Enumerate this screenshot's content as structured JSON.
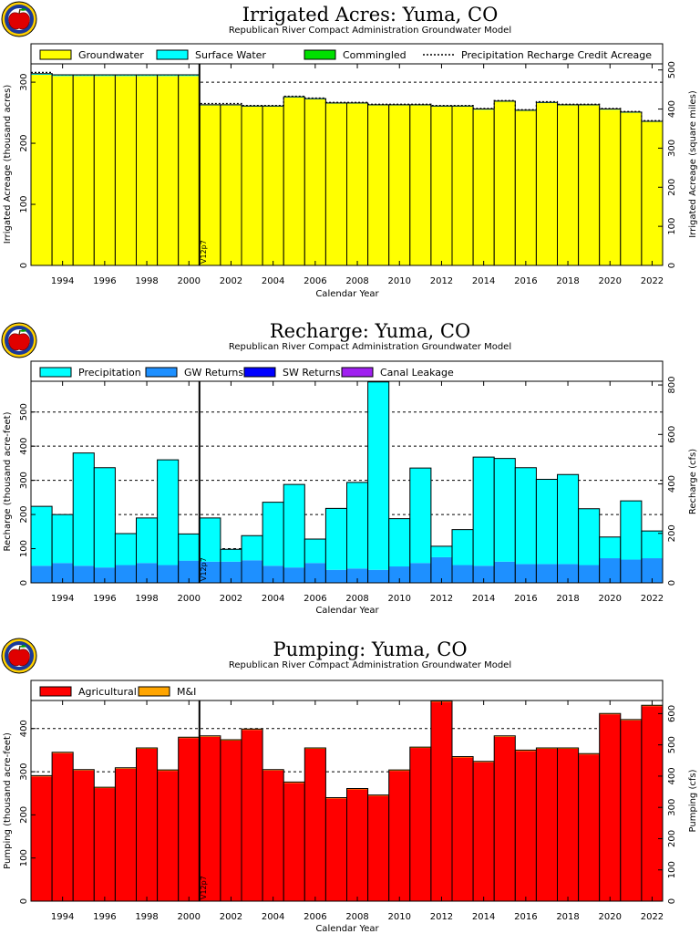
{
  "chart_data": [
    {
      "type": "bar",
      "title": "Irrigated Acres: Yuma, CO",
      "subtitle": "Republican River Compact Administration Groundwater Model",
      "xlabel": "Calendar Year",
      "ylabel": "Irrigated Acreage (thousand acres)",
      "ylabel_right": "Irrigated Acreage (square miles)",
      "stacked": true,
      "x": [
        1993,
        1994,
        1995,
        1996,
        1997,
        1998,
        1999,
        2000,
        2001,
        2002,
        2003,
        2004,
        2005,
        2006,
        2007,
        2008,
        2009,
        2010,
        2011,
        2012,
        2013,
        2014,
        2015,
        2016,
        2017,
        2018,
        2019,
        2020,
        2021,
        2022
      ],
      "x_ticks": [
        "1994",
        "1996",
        "1998",
        "2000",
        "2002",
        "2004",
        "2006",
        "2008",
        "2010",
        "2012",
        "2014",
        "2016",
        "2018",
        "2020",
        "2022"
      ],
      "ylim": [
        0,
        330
      ],
      "y_ticks": [
        "0",
        "100",
        "200",
        "300"
      ],
      "ylim_right": [
        0,
        515.6
      ],
      "y_ticks_right": [
        "0",
        "100",
        "200",
        "300",
        "400",
        "500"
      ],
      "colors": {
        "Groundwater": "#ffff00",
        "Surface Water": "#00ffff",
        "Commingled": "#00e000",
        "Precipitation Recharge Credit Acreage": "#000000"
      },
      "legend": [
        "Groundwater",
        "Surface Water",
        "Commingled",
        "Precipitation Recharge Credit Acreage"
      ],
      "legend_position": "top",
      "series": [
        {
          "name": "Groundwater",
          "values": [
            312,
            310,
            310,
            310,
            310,
            310,
            310,
            310,
            262,
            262,
            260,
            260,
            275,
            272,
            265,
            265,
            262,
            262,
            262,
            260,
            260,
            255,
            268,
            253,
            266,
            262,
            262,
            255,
            250,
            235
          ]
        },
        {
          "name": "Surface Water",
          "values": [
            2,
            2,
            2,
            2,
            2,
            2,
            2,
            2,
            1,
            1,
            1,
            1,
            1,
            1,
            1,
            1,
            1,
            1,
            1,
            1,
            1,
            1,
            1,
            1,
            1,
            1,
            1,
            1,
            1,
            1
          ]
        },
        {
          "name": "Commingled",
          "values": [
            0,
            0,
            0,
            0,
            0,
            0,
            0,
            0,
            0,
            0,
            0,
            0,
            0,
            0,
            0,
            0,
            0,
            0,
            0,
            0,
            0,
            0,
            0,
            0,
            0,
            0,
            0,
            0,
            0,
            0
          ]
        },
        {
          "name": "Precipitation Recharge Credit Acreage",
          "line": true,
          "values": [
            316,
            312,
            312,
            312,
            312,
            312,
            312,
            312,
            265,
            265,
            262,
            262,
            277,
            274,
            267,
            267,
            264,
            264,
            264,
            262,
            262,
            257,
            270,
            255,
            268,
            264,
            264,
            257,
            252,
            237
          ]
        }
      ],
      "marker": {
        "label": "V12p7",
        "x": 2000.5
      },
      "grid": true
    },
    {
      "type": "bar",
      "title": "Recharge: Yuma, CO",
      "subtitle": "Republican River Compact Administration Groundwater Model",
      "xlabel": "Calendar Year",
      "ylabel": "Recharge (thousand acre-feet)",
      "ylabel_right": "Recharge (cfs)",
      "stacked": true,
      "x": [
        1993,
        1994,
        1995,
        1996,
        1997,
        1998,
        1999,
        2000,
        2001,
        2002,
        2003,
        2004,
        2005,
        2006,
        2007,
        2008,
        2009,
        2010,
        2011,
        2012,
        2013,
        2014,
        2015,
        2016,
        2017,
        2018,
        2019,
        2020,
        2021,
        2022
      ],
      "x_ticks": [
        "1994",
        "1996",
        "1998",
        "2000",
        "2002",
        "2004",
        "2006",
        "2008",
        "2010",
        "2012",
        "2014",
        "2016",
        "2018",
        "2020",
        "2022"
      ],
      "ylim": [
        0,
        590
      ],
      "y_ticks": [
        "0",
        "100",
        "200",
        "300",
        "400",
        "500"
      ],
      "ylim_right": [
        0,
        815
      ],
      "y_ticks_right": [
        "0",
        "200",
        "400",
        "600",
        "800"
      ],
      "colors": {
        "Precipitation": "#00ffff",
        "GW Returns": "#1e90ff",
        "SW Returns": "#0000ff",
        "Canal Leakage": "#a020f0"
      },
      "legend": [
        "Precipitation",
        "GW Returns",
        "SW Returns",
        "Canal Leakage"
      ],
      "legend_position": "top",
      "series": [
        {
          "name": "GW Returns",
          "values": [
            50,
            58,
            50,
            45,
            52,
            58,
            52,
            65,
            62,
            62,
            66,
            50,
            45,
            58,
            38,
            42,
            38,
            48,
            58,
            75,
            52,
            50,
            62,
            55,
            55,
            55,
            52,
            72,
            68,
            72
          ]
        },
        {
          "name": "SW Returns",
          "values": [
            0,
            0,
            0,
            0,
            0,
            0,
            0,
            0,
            0,
            0,
            0,
            0,
            0,
            0,
            0,
            0,
            0,
            0,
            0,
            0,
            0,
            0,
            0,
            0,
            0,
            0,
            0,
            0,
            0,
            0
          ]
        },
        {
          "name": "Canal Leakage",
          "values": [
            0,
            0,
            0,
            0,
            0,
            0,
            0,
            0,
            0,
            0,
            0,
            0,
            0,
            0,
            0,
            0,
            0,
            0,
            0,
            0,
            0,
            0,
            0,
            0,
            0,
            0,
            0,
            0,
            0,
            0
          ]
        },
        {
          "name": "Precipitation",
          "values": [
            174,
            142,
            330,
            292,
            92,
            132,
            308,
            78,
            128,
            36,
            72,
            186,
            243,
            70,
            180,
            252,
            550,
            140,
            278,
            32,
            104,
            318,
            302,
            282,
            248,
            262,
            165,
            62,
            172,
            80
          ]
        }
      ],
      "marker": {
        "label": "V12p7",
        "x": 2000.5
      },
      "grid": true
    },
    {
      "type": "bar",
      "title": "Pumping: Yuma, CO",
      "subtitle": "Republican River Compact Administration Groundwater Model",
      "xlabel": "Calendar Year",
      "ylabel": "Pumping (thousand acre-feet)",
      "ylabel_right": "Pumping (cfs)",
      "stacked": true,
      "x": [
        1993,
        1994,
        1995,
        1996,
        1997,
        1998,
        1999,
        2000,
        2001,
        2002,
        2003,
        2004,
        2005,
        2006,
        2007,
        2008,
        2009,
        2010,
        2011,
        2012,
        2013,
        2014,
        2015,
        2016,
        2017,
        2018,
        2019,
        2020,
        2021,
        2022
      ],
      "x_ticks": [
        "1994",
        "1996",
        "1998",
        "2000",
        "2002",
        "2004",
        "2006",
        "2008",
        "2010",
        "2012",
        "2014",
        "2016",
        "2018",
        "2020",
        "2022"
      ],
      "ylim": [
        0,
        465
      ],
      "y_ticks": [
        "0",
        "100",
        "200",
        "300",
        "400"
      ],
      "ylim_right": [
        0,
        642
      ],
      "y_ticks_right": [
        "0",
        "100",
        "200",
        "300",
        "400",
        "500",
        "600"
      ],
      "colors": {
        "Agricultural": "#ff0000",
        "M&I": "#ffa500"
      },
      "legend": [
        "Agricultural",
        "M&I"
      ],
      "legend_position": "top",
      "series": [
        {
          "name": "Agricultural",
          "values": [
            289,
            343,
            303,
            262,
            307,
            353,
            302,
            378,
            381,
            372,
            397,
            303,
            274,
            353,
            238,
            259,
            244,
            302,
            355,
            462,
            333,
            322,
            381,
            348,
            353,
            353,
            340,
            433,
            419,
            452
          ]
        },
        {
          "name": "M&I",
          "values": [
            2,
            2,
            2,
            2,
            2,
            2,
            2,
            2,
            2,
            2,
            2,
            2,
            2,
            2,
            2,
            2,
            2,
            2,
            2,
            2,
            2,
            2,
            2,
            2,
            2,
            2,
            2,
            2,
            2,
            2
          ]
        }
      ],
      "marker": {
        "label": "V12p7",
        "x": 2000.5
      },
      "grid": true
    }
  ]
}
